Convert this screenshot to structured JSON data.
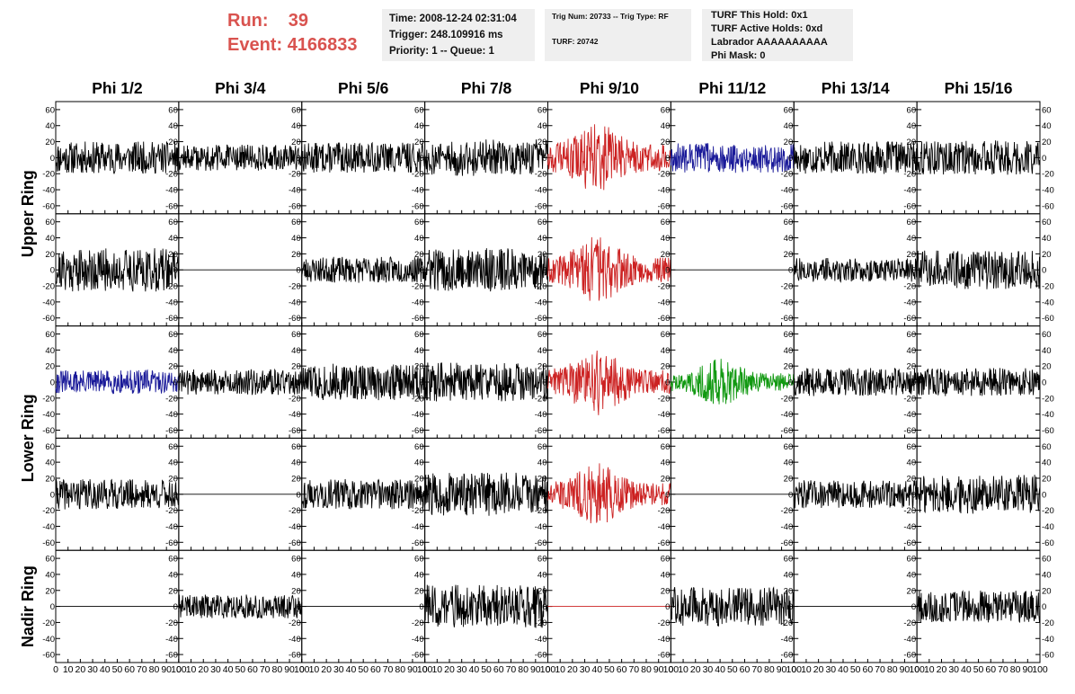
{
  "header": {
    "run_label": "Run:",
    "run_value": "39",
    "event_label": "Event:",
    "event_value": "4166833",
    "time": "Time: 2008-12-24 02:31:04",
    "trigger": "Trigger: 248.109916 ms",
    "priority": "Priority: 1 -- Queue: 1",
    "trig_num": "Trig Num: 20733 -- Trig Type: RF",
    "turf": "TURF: 20742",
    "turf_this_hold": "TURF This Hold: 0x1",
    "turf_active_holds": "TURF Active Holds: 0xd",
    "labrador": "Labrador AAAAAAAAAA",
    "phi_mask": "Phi Mask: 0"
  },
  "colors": {
    "default": "#000000",
    "red": "#cc2222",
    "blue": "#1a1a99",
    "green": "#119911"
  },
  "chart_data": {
    "type": "line",
    "columns": [
      "Phi 1/2",
      "Phi 3/4",
      "Phi 5/6",
      "Phi 7/8",
      "Phi 9/10",
      "Phi 11/12",
      "Phi 13/14",
      "Phi 15/16"
    ],
    "ring_labels": [
      {
        "name": "Upper Ring",
        "rows": [
          0,
          1
        ]
      },
      {
        "name": "Lower Ring",
        "rows": [
          2,
          3
        ]
      },
      {
        "name": "Nadir Ring",
        "rows": [
          4
        ]
      }
    ],
    "xlim": [
      0,
      100
    ],
    "ylim": [
      -70,
      70
    ],
    "yticks": [
      -60,
      -40,
      -20,
      0,
      20,
      40,
      60
    ],
    "xticks": [
      0,
      10,
      20,
      30,
      40,
      50,
      60,
      70,
      80,
      90,
      100
    ],
    "xtick_labels": [
      "0",
      "10",
      "20",
      "30",
      "40",
      "50",
      "60",
      "70",
      "80",
      "90",
      "100"
    ],
    "waveform_samples": 256,
    "panels": [
      [
        {
          "color": "default",
          "amplitude": 15,
          "shape": "noise",
          "seed": 11
        },
        {
          "color": "default",
          "amplitude": 12,
          "shape": "noise",
          "seed": 12
        },
        {
          "color": "default",
          "amplitude": 14,
          "shape": "noise",
          "seed": 13
        },
        {
          "color": "default",
          "amplitude": 17,
          "shape": "noise",
          "seed": 14
        },
        {
          "color": "red",
          "amplitude": 28,
          "shape": "pulse",
          "seed": 15
        },
        {
          "color": "blue",
          "amplitude": 14,
          "shape": "noise",
          "seed": 16
        },
        {
          "color": "default",
          "amplitude": 15,
          "shape": "noise",
          "seed": 17
        },
        {
          "color": "default",
          "amplitude": 16,
          "shape": "noise",
          "seed": 18
        }
      ],
      [
        {
          "color": "default",
          "amplitude": 20,
          "shape": "noise",
          "seed": 21
        },
        {
          "color": "default",
          "amplitude": 0,
          "shape": "flat",
          "seed": 22
        },
        {
          "color": "default",
          "amplitude": 12,
          "shape": "noise",
          "seed": 23
        },
        {
          "color": "default",
          "amplitude": 20,
          "shape": "noise",
          "seed": 24
        },
        {
          "color": "red",
          "amplitude": 26,
          "shape": "pulse",
          "seed": 25
        },
        {
          "color": "default",
          "amplitude": 0,
          "shape": "flat",
          "seed": 26
        },
        {
          "color": "default",
          "amplitude": 11,
          "shape": "noise",
          "seed": 27
        },
        {
          "color": "default",
          "amplitude": 18,
          "shape": "noise",
          "seed": 28
        }
      ],
      [
        {
          "color": "blue",
          "amplitude": 11,
          "shape": "noise",
          "seed": 31
        },
        {
          "color": "default",
          "amplitude": 12,
          "shape": "noise",
          "seed": 32
        },
        {
          "color": "default",
          "amplitude": 17,
          "shape": "noise",
          "seed": 33
        },
        {
          "color": "default",
          "amplitude": 18,
          "shape": "noise",
          "seed": 34
        },
        {
          "color": "red",
          "amplitude": 26,
          "shape": "pulse",
          "seed": 35
        },
        {
          "color": "green",
          "amplitude": 18,
          "shape": "pulse",
          "seed": 36
        },
        {
          "color": "default",
          "amplitude": 13,
          "shape": "noise",
          "seed": 37
        },
        {
          "color": "default",
          "amplitude": 13,
          "shape": "noise",
          "seed": 38
        }
      ],
      [
        {
          "color": "default",
          "amplitude": 14,
          "shape": "noise",
          "seed": 41
        },
        {
          "color": "default",
          "amplitude": 0,
          "shape": "flat",
          "seed": 42
        },
        {
          "color": "default",
          "amplitude": 14,
          "shape": "noise",
          "seed": 43
        },
        {
          "color": "default",
          "amplitude": 20,
          "shape": "noise",
          "seed": 44
        },
        {
          "color": "red",
          "amplitude": 24,
          "shape": "pulse",
          "seed": 45
        },
        {
          "color": "default",
          "amplitude": 0,
          "shape": "flat",
          "seed": 46
        },
        {
          "color": "default",
          "amplitude": 13,
          "shape": "noise",
          "seed": 47
        },
        {
          "color": "default",
          "amplitude": 18,
          "shape": "noise",
          "seed": 48
        }
      ],
      [
        {
          "color": "default",
          "amplitude": 0,
          "shape": "flat",
          "seed": 51
        },
        {
          "color": "default",
          "amplitude": 11,
          "shape": "noise",
          "seed": 52
        },
        {
          "color": "default",
          "amplitude": 0,
          "shape": "flat",
          "seed": 53
        },
        {
          "color": "default",
          "amplitude": 20,
          "shape": "noise",
          "seed": 54
        },
        {
          "color": "red",
          "amplitude": 0,
          "shape": "flat",
          "seed": 55
        },
        {
          "color": "default",
          "amplitude": 18,
          "shape": "noise",
          "seed": 56
        },
        {
          "color": "default",
          "amplitude": 0,
          "shape": "flat",
          "seed": 57
        },
        {
          "color": "default",
          "amplitude": 15,
          "shape": "noise",
          "seed": 58
        }
      ]
    ]
  }
}
